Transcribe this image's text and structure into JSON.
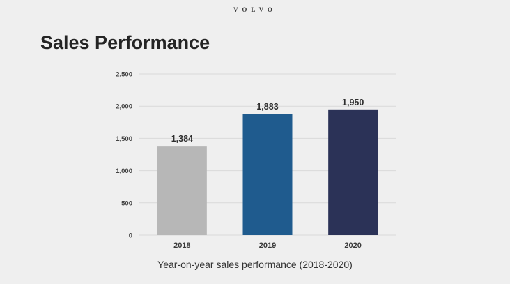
{
  "brand": "VOLVO",
  "title": "Sales Performance",
  "caption": "Year-on-year sales performance (2018-2020)",
  "colors": {
    "background": "#efefef",
    "grid": "#d9d9d9",
    "bars": [
      "#b7b7b7",
      "#1f5b8e",
      "#2b3257"
    ]
  },
  "chart_data": {
    "type": "bar",
    "categories": [
      "2018",
      "2019",
      "2020"
    ],
    "values": [
      1384,
      1883,
      1950
    ],
    "data_labels": [
      "1,384",
      "1,883",
      "1,950"
    ],
    "yticks": [
      0,
      500,
      1000,
      1500,
      2000,
      2500
    ],
    "ytick_labels": [
      "0",
      "500",
      "1,000",
      "1,500",
      "2,000",
      "2,500"
    ],
    "ylim": [
      0,
      2500
    ],
    "grid": true,
    "legend": "none",
    "title": "",
    "xlabel": "",
    "ylabel": ""
  }
}
